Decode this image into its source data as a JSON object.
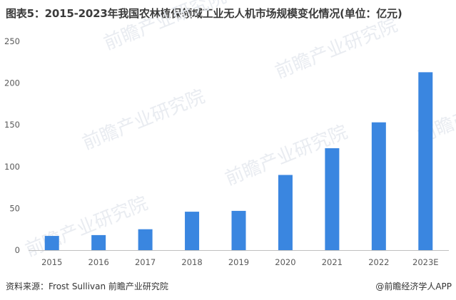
{
  "title": "图表5：2015-2023年我国农林植保领域工业无人机市场规模变化情况(单位：亿元)",
  "source": "资料来源：Frost Sullivan 前瞻产业研究院",
  "brand": "@前瞻经济学人APP",
  "watermark": "前瞻产业研究院",
  "colors": {
    "bar": "#3a86e0",
    "axis": "#bfbfbf",
    "text": "#595959"
  },
  "chart_data": {
    "type": "bar",
    "categories": [
      "2015",
      "2016",
      "2017",
      "2018",
      "2019",
      "2020",
      "2021",
      "2022",
      "2023E"
    ],
    "values": [
      17,
      18,
      25,
      46,
      47,
      90,
      122,
      153,
      213
    ],
    "ylim": [
      0,
      250
    ],
    "yticks": [
      0,
      50,
      100,
      150,
      200,
      250
    ],
    "grid": false
  }
}
